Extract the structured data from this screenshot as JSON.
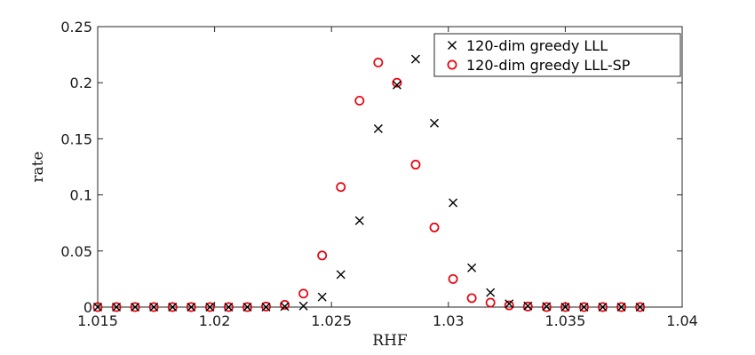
{
  "chart_data": {
    "type": "scatter",
    "xlabel": "RHF",
    "ylabel": "rate",
    "xlim": [
      1.015,
      1.04
    ],
    "ylim": [
      0,
      0.25
    ],
    "xticks": [
      1.015,
      1.02,
      1.025,
      1.03,
      1.035,
      1.04
    ],
    "xtick_labels": [
      "1.015",
      "1.02",
      "1.025",
      "1.03",
      "1.035",
      "1.04"
    ],
    "yticks": [
      0,
      0.05,
      0.1,
      0.15,
      0.2,
      0.25
    ],
    "ytick_labels": [
      "0",
      "0.05",
      "0.1",
      "0.15",
      "0.2",
      "0.25"
    ],
    "grid": false,
    "legend_position": "top-right",
    "series": [
      {
        "name": "120-dim greedy LLL",
        "marker": "x",
        "color": "#000000",
        "x": [
          1.015,
          1.0158,
          1.0166,
          1.0174,
          1.0182,
          1.019,
          1.0198,
          1.0206,
          1.0214,
          1.0222,
          1.023,
          1.0238,
          1.0246,
          1.0254,
          1.0262,
          1.027,
          1.0278,
          1.0286,
          1.0294,
          1.0302,
          1.031,
          1.0318,
          1.0326,
          1.0334,
          1.0342,
          1.035,
          1.0358,
          1.0366,
          1.0374,
          1.0382
        ],
        "y": [
          0,
          0,
          0,
          0,
          0,
          0,
          0,
          0,
          0,
          0,
          0.0005,
          0.001,
          0.009,
          0.029,
          0.077,
          0.159,
          0.198,
          0.221,
          0.164,
          0.093,
          0.035,
          0.013,
          0.003,
          0.001,
          0.0005,
          0,
          0,
          0,
          0,
          0
        ]
      },
      {
        "name": "120-dim greedy LLL-SP",
        "marker": "o",
        "color": "#e8000b",
        "x": [
          1.015,
          1.0158,
          1.0166,
          1.0174,
          1.0182,
          1.019,
          1.0198,
          1.0206,
          1.0214,
          1.0222,
          1.023,
          1.0238,
          1.0246,
          1.0254,
          1.0262,
          1.027,
          1.0278,
          1.0286,
          1.0294,
          1.0302,
          1.031,
          1.0318,
          1.0326,
          1.0334,
          1.0342,
          1.035,
          1.0358,
          1.0366,
          1.0374,
          1.0382
        ],
        "y": [
          0,
          0,
          0,
          0,
          0,
          0,
          0,
          0,
          0,
          0.0005,
          0.002,
          0.012,
          0.046,
          0.107,
          0.184,
          0.218,
          0.2,
          0.127,
          0.071,
          0.025,
          0.008,
          0.004,
          0.0015,
          0.0005,
          0,
          0,
          0,
          0,
          0,
          0
        ]
      }
    ]
  }
}
